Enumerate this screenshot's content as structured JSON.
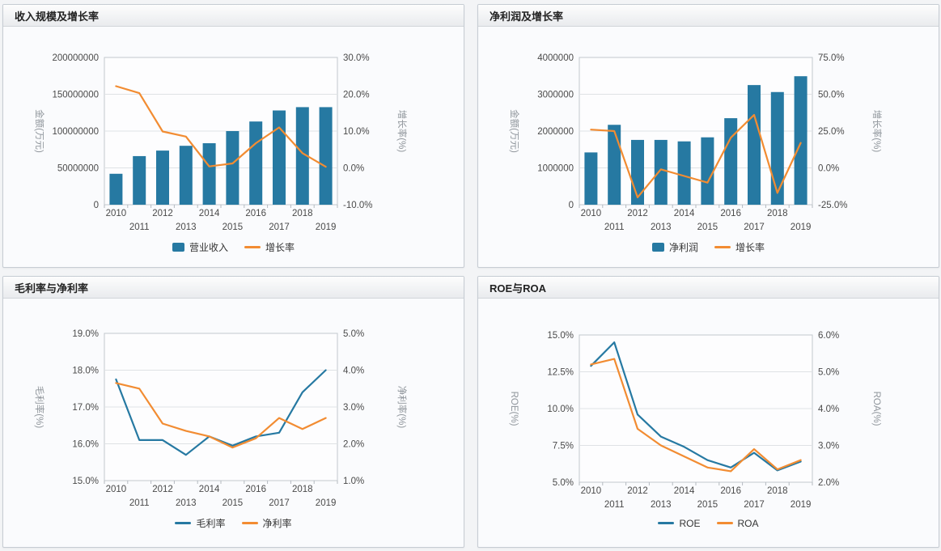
{
  "colors": {
    "series_blue": "#2679a2",
    "series_orange": "#f28c32"
  },
  "chart_data": [
    {
      "id": "revenue",
      "title": "收入规模及增长率",
      "type": "combo",
      "categories": [
        "2010",
        "2011",
        "2012",
        "2013",
        "2014",
        "2015",
        "2016",
        "2017",
        "2018",
        "2019"
      ],
      "series": [
        {
          "name": "营业收入",
          "type": "bar",
          "axis": "left",
          "color": "#2679a2",
          "values": [
            42000000,
            66000000,
            73500000,
            80000000,
            83500000,
            100000000,
            113000000,
            128000000,
            132500000,
            132500000
          ]
        },
        {
          "name": "增长率",
          "type": "line",
          "axis": "right",
          "color": "#f28c32",
          "values": [
            22.2,
            20.3,
            9.9,
            8.5,
            0.4,
            1.2,
            6.7,
            11.0,
            4.0,
            0.3
          ]
        }
      ],
      "left_axis": {
        "title": "金额(万元)",
        "min": 0,
        "max": 200000000,
        "step": 50000000,
        "format": "int"
      },
      "right_axis": {
        "title": "增长率(%)",
        "min": -10,
        "max": 30,
        "step": 10,
        "format": "pct"
      },
      "grid": true,
      "legend_position": "bottom"
    },
    {
      "id": "net-profit",
      "title": "净利润及增长率",
      "type": "combo",
      "categories": [
        "2010",
        "2011",
        "2012",
        "2013",
        "2014",
        "2015",
        "2016",
        "2017",
        "2018",
        "2019"
      ],
      "series": [
        {
          "name": "净利润",
          "type": "bar",
          "axis": "left",
          "color": "#2679a2",
          "values": [
            1420000,
            2170000,
            1760000,
            1760000,
            1720000,
            1830000,
            2350000,
            3250000,
            3060000,
            3490000
          ]
        },
        {
          "name": "增长率",
          "type": "line",
          "axis": "right",
          "color": "#f28c32",
          "values": [
            26.0,
            25.0,
            -20.0,
            -1.0,
            -5.5,
            -10.0,
            20.5,
            36.0,
            -17.0,
            17.0
          ]
        }
      ],
      "left_axis": {
        "title": "金额(万元)",
        "min": 0,
        "max": 4000000,
        "step": 1000000,
        "format": "int"
      },
      "right_axis": {
        "title": "增长率(%)",
        "min": -25,
        "max": 75,
        "step": 25,
        "format": "pct"
      },
      "grid": true,
      "legend_position": "bottom"
    },
    {
      "id": "margins",
      "title": "毛利率与净利率",
      "type": "line",
      "categories": [
        "2010",
        "2011",
        "2012",
        "2013",
        "2014",
        "2015",
        "2016",
        "2017",
        "2018",
        "2019"
      ],
      "series": [
        {
          "name": "毛利率",
          "type": "line",
          "axis": "left",
          "color": "#2679a2",
          "values": [
            17.75,
            16.1,
            16.1,
            15.7,
            16.2,
            15.95,
            16.2,
            16.3,
            17.4,
            18.0
          ]
        },
        {
          "name": "净利率",
          "type": "line",
          "axis": "right",
          "color": "#f28c32",
          "values": [
            3.65,
            3.5,
            2.55,
            2.35,
            2.2,
            1.9,
            2.15,
            2.7,
            2.4,
            2.7
          ]
        }
      ],
      "left_axis": {
        "title": "毛利率(%)",
        "min": 15,
        "max": 19,
        "step": 1,
        "format": "pct"
      },
      "right_axis": {
        "title": "净利率(%)",
        "min": 1,
        "max": 5,
        "step": 1,
        "format": "pct"
      },
      "grid": true,
      "legend_position": "bottom"
    },
    {
      "id": "roe-roa",
      "title": "ROE与ROA",
      "type": "line",
      "categories": [
        "2010",
        "2011",
        "2012",
        "2013",
        "2014",
        "2015",
        "2016",
        "2017",
        "2018",
        "2019"
      ],
      "series": [
        {
          "name": "ROE",
          "type": "line",
          "axis": "left",
          "color": "#2679a2",
          "values": [
            12.9,
            14.5,
            9.6,
            8.1,
            7.4,
            6.5,
            6.0,
            7.0,
            5.8,
            6.4
          ]
        },
        {
          "name": "ROA",
          "type": "line",
          "axis": "right",
          "color": "#f28c32",
          "values": [
            5.2,
            5.35,
            3.45,
            3.0,
            2.7,
            2.4,
            2.3,
            2.9,
            2.35,
            2.6
          ]
        }
      ],
      "left_axis": {
        "title": "ROE(%)",
        "min": 5,
        "max": 15,
        "step": 2.5,
        "format": "pct"
      },
      "right_axis": {
        "title": "ROA(%)",
        "min": 2,
        "max": 6,
        "step": 1,
        "format": "pct"
      },
      "grid": true,
      "legend_position": "bottom"
    }
  ]
}
